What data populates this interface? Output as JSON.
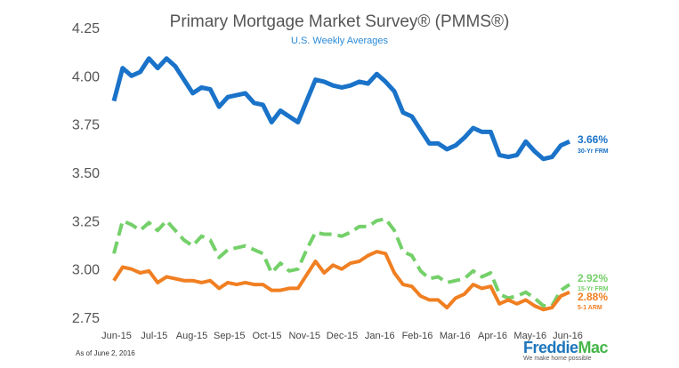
{
  "header": {
    "title": "Primary Mortgage Market Survey® (PMMS®)",
    "subtitle": "U.S. Weekly Averages"
  },
  "footer": {
    "as_of": "As of June 2, 2016",
    "logo_text_main": "Freddie",
    "logo_text_accent": "Mac",
    "logo_tagline": "We make home possible"
  },
  "chart_data": {
    "type": "line",
    "title": "Primary Mortgage Market Survey® (PMMS®)",
    "subtitle": "U.S. Weekly Averages",
    "xlabel": "",
    "ylabel": "",
    "ylim": [
      2.75,
      4.25
    ],
    "yticks": [
      "4.25",
      "4.00",
      "3.75",
      "3.50",
      "3.25",
      "3.00",
      "2.75"
    ],
    "xticks": [
      "Jun-15",
      "Jul-15",
      "Aug-15",
      "Sep-15",
      "Oct-15",
      "Nov-15",
      "Dec-15",
      "Jan-16",
      "Feb-16",
      "Mar-16",
      "Apr-16",
      "May-16",
      "Jun-16"
    ],
    "grid": false,
    "legend": "inline labels at right end of each series",
    "series": [
      {
        "key": "frm30",
        "label": "30-Yr FRM",
        "end_label": "3.66%",
        "color": "#1a73c9",
        "dashed": false,
        "values": [
          3.87,
          4.04,
          4.0,
          4.02,
          4.09,
          4.04,
          4.09,
          4.05,
          3.98,
          3.91,
          3.94,
          3.93,
          3.84,
          3.89,
          3.9,
          3.91,
          3.86,
          3.85,
          3.76,
          3.82,
          3.79,
          3.76,
          3.87,
          3.98,
          3.97,
          3.95,
          3.94,
          3.95,
          3.97,
          3.96,
          4.01,
          3.97,
          3.92,
          3.81,
          3.79,
          3.72,
          3.65,
          3.65,
          3.62,
          3.64,
          3.68,
          3.73,
          3.71,
          3.71,
          3.59,
          3.58,
          3.59,
          3.66,
          3.61,
          3.57,
          3.58,
          3.64,
          3.66
        ]
      },
      {
        "key": "frm15",
        "label": "15-Yr FRM",
        "end_label": "2.92%",
        "color": "#74d069",
        "dashed": true,
        "values": [
          3.08,
          3.25,
          3.23,
          3.2,
          3.24,
          3.2,
          3.25,
          3.2,
          3.15,
          3.12,
          3.17,
          3.15,
          3.06,
          3.1,
          3.11,
          3.12,
          3.1,
          3.08,
          2.98,
          3.03,
          2.99,
          3.0,
          3.1,
          3.19,
          3.18,
          3.18,
          3.17,
          3.19,
          3.22,
          3.22,
          3.25,
          3.26,
          3.2,
          3.09,
          3.07,
          2.99,
          2.95,
          2.96,
          2.93,
          2.94,
          2.95,
          2.99,
          2.96,
          2.98,
          2.87,
          2.85,
          2.86,
          2.88,
          2.85,
          2.81,
          2.81,
          2.89,
          2.92
        ]
      },
      {
        "key": "arm51",
        "label": "5-1 ARM",
        "end_label": "2.88%",
        "color": "#f07f22",
        "dashed": false,
        "values": [
          2.94,
          3.01,
          3.0,
          2.98,
          2.99,
          2.93,
          2.96,
          2.95,
          2.94,
          2.94,
          2.93,
          2.94,
          2.9,
          2.93,
          2.92,
          2.93,
          2.92,
          2.92,
          2.89,
          2.89,
          2.9,
          2.9,
          2.97,
          3.04,
          2.98,
          3.02,
          3.0,
          3.03,
          3.04,
          3.07,
          3.09,
          3.08,
          2.98,
          2.92,
          2.91,
          2.86,
          2.84,
          2.84,
          2.8,
          2.85,
          2.87,
          2.92,
          2.9,
          2.91,
          2.82,
          2.84,
          2.82,
          2.84,
          2.81,
          2.79,
          2.8,
          2.86,
          2.88
        ]
      }
    ]
  }
}
